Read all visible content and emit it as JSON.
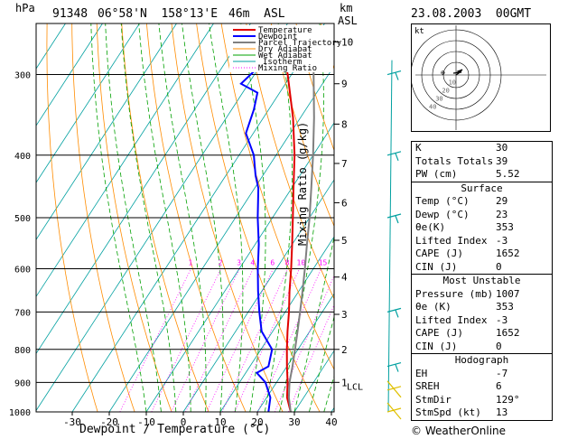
{
  "header": {
    "hpa_label": "hPa",
    "station": "91348",
    "location": "06°58'N  158°13'E",
    "elevation": "46m  ASL",
    "km_label": "km",
    "asl_label": "ASL",
    "datetime": "23.08.2003  00GMT"
  },
  "legend": [
    "Temperature",
    "Dewpoint",
    "Parcel Trajectory",
    "Dry Adiabat",
    "Wet Adiabat",
    "Isotherm",
    "Mixing Ratio"
  ],
  "hodograph": {
    "unit": "kt",
    "rings": [
      "10",
      "20",
      "30",
      "40"
    ]
  },
  "indices": {
    "k": {
      "label": "K",
      "value": "30"
    },
    "tt": {
      "label": "Totals Totals",
      "value": "39"
    },
    "pw": {
      "label": "PW (cm)",
      "value": "5.52"
    }
  },
  "surface": {
    "title": "Surface",
    "rows": [
      {
        "label": "Temp (°C)",
        "value": "29"
      },
      {
        "label": "Dewp (°C)",
        "value": "23"
      },
      {
        "label": "θe(K)",
        "value": "353"
      },
      {
        "label": "Lifted Index",
        "value": "-3"
      },
      {
        "label": "CAPE (J)",
        "value": "1652"
      },
      {
        "label": "CIN (J)",
        "value": "0"
      }
    ]
  },
  "unstable": {
    "title": "Most Unstable",
    "rows": [
      {
        "label": "Pressure (mb)",
        "value": "1007"
      },
      {
        "label": "θe (K)",
        "value": "353"
      },
      {
        "label": "Lifted Index",
        "value": "-3"
      },
      {
        "label": "CAPE (J)",
        "value": "1652"
      },
      {
        "label": "CIN (J)",
        "value": "0"
      }
    ]
  },
  "hodo_idx": {
    "title": "Hodograph",
    "rows": [
      {
        "label": "EH",
        "value": "-7"
      },
      {
        "label": "SREH",
        "value": "6"
      },
      {
        "label": "StmDir",
        "value": "129°"
      },
      {
        "label": "StmSpd (kt)",
        "value": "13"
      }
    ]
  },
  "credit": "© WeatherOnline",
  "colors": {
    "temperature": "#e00000",
    "dewpoint": "#0000ff",
    "parcel": "#808080",
    "dry": "#ff8c00",
    "wet": "#00a000",
    "mixing": "#ff00ff",
    "wind": "#00a0a0"
  },
  "chart_data": {
    "type": "line",
    "title": "91348  06°58'N  158°13'E  46m ASL",
    "xlabel": "Dewpoint / Temperature (°C)",
    "ylabel": "hPa",
    "ylabel_right": "Mixing Ratio (g/kg)",
    "x_ticks": [
      -30,
      -20,
      -10,
      0,
      10,
      20,
      30,
      40
    ],
    "pressure_ticks": [
      300,
      400,
      500,
      600,
      700,
      800,
      900,
      1000
    ],
    "xlim": [
      -40,
      40
    ],
    "ylim": [
      1000,
      250
    ],
    "km_ticks": [
      {
        "km": "10",
        "p": 267
      },
      {
        "km": "9",
        "p": 310
      },
      {
        "km": "8",
        "p": 358
      },
      {
        "km": "7",
        "p": 412
      },
      {
        "km": "6",
        "p": 474
      },
      {
        "km": "5",
        "p": 542
      },
      {
        "km": "4",
        "p": 618
      },
      {
        "km": "3",
        "p": 706
      },
      {
        "km": "2",
        "p": 800
      },
      {
        "km": "1",
        "p": 900
      }
    ],
    "lcl": "LCL",
    "mixing_ratios": [
      "1",
      "2",
      "3",
      "4",
      "6",
      "8",
      "10",
      "15",
      "20",
      "25"
    ],
    "series": [
      {
        "name": "Temperature",
        "points": [
          [
            1000,
            29
          ],
          [
            950,
            25.5
          ],
          [
            900,
            23
          ],
          [
            850,
            20
          ],
          [
            800,
            17
          ],
          [
            750,
            14
          ],
          [
            700,
            11
          ],
          [
            650,
            7.5
          ],
          [
            600,
            4
          ],
          [
            550,
            0
          ],
          [
            500,
            -4.5
          ],
          [
            450,
            -9.5
          ],
          [
            400,
            -15
          ],
          [
            350,
            -22
          ],
          [
            300,
            -31
          ],
          [
            260,
            -40
          ]
        ]
      },
      {
        "name": "Dewpoint",
        "points": [
          [
            1000,
            23
          ],
          [
            950,
            21
          ],
          [
            900,
            17
          ],
          [
            870,
            13
          ],
          [
            850,
            15
          ],
          [
            800,
            13
          ],
          [
            750,
            7
          ],
          [
            700,
            3
          ],
          [
            650,
            -1
          ],
          [
            600,
            -5
          ],
          [
            550,
            -9
          ],
          [
            500,
            -14
          ],
          [
            450,
            -19
          ],
          [
            430,
            -22
          ],
          [
            400,
            -26
          ],
          [
            370,
            -32
          ],
          [
            340,
            -34
          ],
          [
            320,
            -36
          ],
          [
            310,
            -42
          ],
          [
            290,
            -40
          ],
          [
            260,
            -53
          ]
        ]
      },
      {
        "name": "Parcel Trajectory",
        "points": [
          [
            1000,
            29
          ],
          [
            950,
            26
          ],
          [
            900,
            23.5
          ],
          [
            850,
            21.5
          ],
          [
            800,
            19.2
          ],
          [
            750,
            16.7
          ],
          [
            700,
            14
          ],
          [
            650,
            11
          ],
          [
            600,
            7.7
          ],
          [
            550,
            4
          ],
          [
            500,
            0
          ],
          [
            450,
            -4.7
          ],
          [
            400,
            -10
          ],
          [
            350,
            -16.3
          ],
          [
            300,
            -24
          ],
          [
            260,
            -31
          ]
        ]
      }
    ],
    "wind_barbs": [
      {
        "p": 300
      },
      {
        "p": 400
      },
      {
        "p": 500
      },
      {
        "p": 700
      },
      {
        "p": 850
      },
      {
        "p": 925
      },
      {
        "p": 1000
      }
    ]
  }
}
